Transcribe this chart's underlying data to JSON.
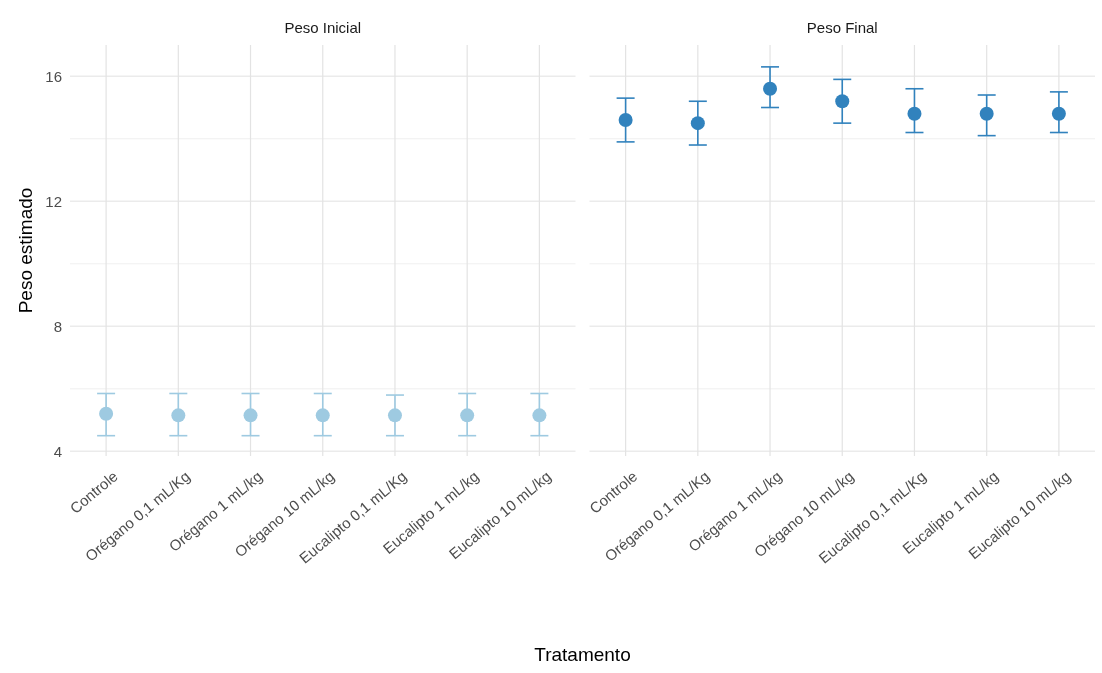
{
  "chart_data": [
    {
      "type": "scatter",
      "title": "Peso Inicial",
      "xlabel": "Tratamento",
      "ylabel": "Peso estimado",
      "categories": [
        "Controle",
        "Orégano 0,1 mL/Kg",
        "Orégano 1 mL/kg",
        "Orégano 10 mL/kg",
        "Eucalipto 0,1 mL/Kg",
        "Eucalipto 1 mL/kg",
        "Eucalipto 10 mL/kg"
      ],
      "series": [
        {
          "color": "#9ecae1",
          "values": [
            5.2,
            5.15,
            5.15,
            5.15,
            5.15,
            5.15,
            5.15
          ],
          "errors": [
            [
              4.5,
              5.85
            ],
            [
              4.5,
              5.85
            ],
            [
              4.5,
              5.85
            ],
            [
              4.5,
              5.85
            ],
            [
              4.5,
              5.8
            ],
            [
              4.5,
              5.85
            ],
            [
              4.5,
              5.85
            ]
          ]
        }
      ],
      "ylim": [
        3.85,
        17
      ],
      "yticks": [
        4,
        {
          "value": 6,
          "label": null
        },
        8,
        {
          "value": 10,
          "label": null
        },
        12,
        {
          "value": 14,
          "label": null
        },
        16
      ],
      "grid": true,
      "marker": "circle"
    },
    {
      "type": "scatter",
      "title": "Peso Final",
      "categories": [
        "Controle",
        "Orégano 0,1 mL/Kg",
        "Orégano 1 mL/kg",
        "Orégano 10 mL/kg",
        "Eucalipto 0,1 mL/Kg",
        "Eucalipto 1 mL/kg",
        "Eucalipto 10 mL/kg"
      ],
      "series": [
        {
          "color": "#3182bd",
          "values": [
            14.6,
            14.5,
            15.6,
            15.2,
            14.8,
            14.8,
            14.8
          ],
          "errors": [
            [
              13.9,
              15.3
            ],
            [
              13.8,
              15.2
            ],
            [
              15.0,
              16.3
            ],
            [
              14.5,
              15.9
            ],
            [
              14.2,
              15.6
            ],
            [
              14.1,
              15.4
            ],
            [
              14.2,
              15.5
            ]
          ]
        }
      ],
      "ylim": [
        3.85,
        17
      ],
      "yticks": [
        4,
        {
          "value": 6,
          "label": null
        },
        8,
        {
          "value": 10,
          "label": null
        },
        12,
        {
          "value": 14,
          "label": null
        },
        16
      ],
      "grid": true,
      "marker": "circle",
      "tick_labels": "x"
    }
  ]
}
